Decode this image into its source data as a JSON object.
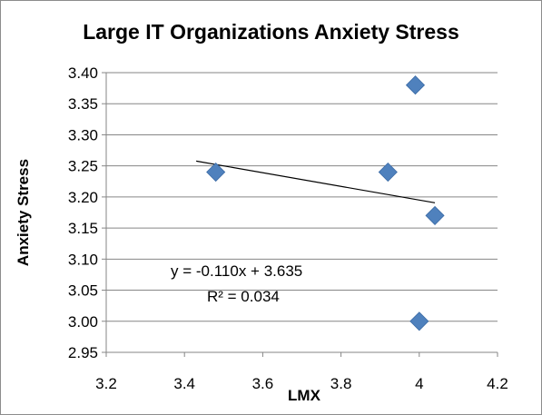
{
  "chart_data": {
    "type": "scatter",
    "title": "Large IT Organizations Anxiety Stress",
    "xlabel": "LMX",
    "ylabel": "Anxiety Stress",
    "xlim": [
      3.2,
      4.2
    ],
    "ylim": [
      2.95,
      3.4
    ],
    "x_ticks": [
      "3.2",
      "3.4",
      "3.6",
      "3.8",
      "4",
      "4.2"
    ],
    "y_ticks": [
      "2.95",
      "3.00",
      "3.05",
      "3.10",
      "3.15",
      "3.20",
      "3.25",
      "3.30",
      "3.35",
      "3.40"
    ],
    "grid": "horizontal",
    "points": [
      {
        "x": 3.48,
        "y": 3.24
      },
      {
        "x": 3.92,
        "y": 3.24
      },
      {
        "x": 3.99,
        "y": 3.38
      },
      {
        "x": 4.04,
        "y": 3.17
      },
      {
        "x": 4.0,
        "y": 3.0
      }
    ],
    "trendline": {
      "slope": -0.11,
      "intercept": 3.635,
      "x_range": [
        3.43,
        4.04
      ]
    },
    "equation": "y = -0.110x + 3.635",
    "r_squared": "R² = 0.034",
    "marker_color": "#4f81bd",
    "gridline_color": "#868686"
  }
}
